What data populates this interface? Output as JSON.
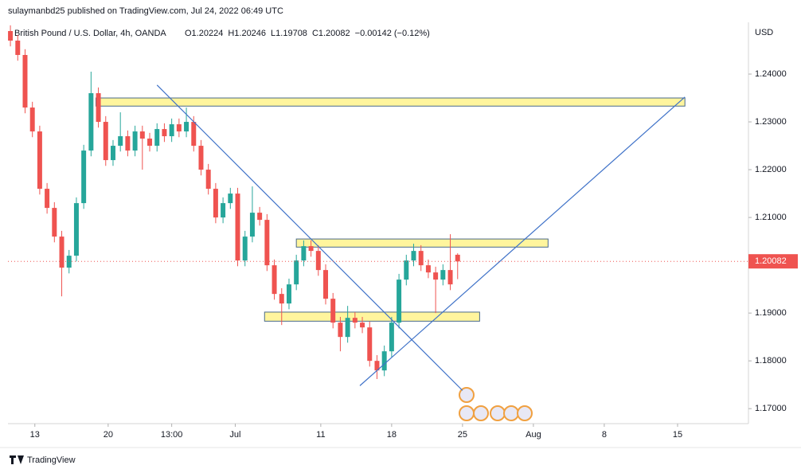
{
  "header": {
    "author": "sulaymanbd25 published on TradingView.com, Jul 24, 2022 06:49 UTC"
  },
  "footer": {
    "brand": "TradingView"
  },
  "chart_data": {
    "type": "candlestick",
    "title": "British Pound / U.S. Dollar, 4h, OANDA",
    "ohlc_text": [
      "O1.20224",
      "H1.20246",
      "L1.19708",
      "C1.20082",
      "−0.00142 (−0.12%)"
    ],
    "y_unit": "USD",
    "x": [
      0,
      3,
      6,
      9,
      12,
      15,
      18,
      21,
      24,
      27,
      30,
      33,
      36,
      39,
      42,
      45,
      48,
      51,
      54,
      57,
      60,
      63,
      66,
      69,
      72,
      75,
      78,
      81,
      84,
      87,
      90,
      93,
      96,
      99,
      102,
      105,
      108,
      111,
      114,
      117,
      120,
      123,
      126,
      129,
      132,
      135,
      138,
      141,
      144,
      147,
      150,
      153,
      156,
      159,
      162,
      165,
      168,
      171,
      174,
      177,
      180,
      183
    ],
    "open": [
      1.249,
      1.247,
      1.244,
      1.233,
      1.228,
      1.216,
      1.212,
      1.206,
      1.1995,
      1.202,
      1.213,
      1.224,
      1.236,
      1.23,
      1.222,
      1.225,
      1.227,
      1.224,
      1.228,
      1.2265,
      1.225,
      1.2285,
      1.227,
      1.2295,
      1.228,
      1.23,
      1.225,
      1.22,
      1.216,
      1.21,
      1.213,
      1.215,
      1.201,
      1.206,
      1.211,
      1.2095,
      1.2,
      1.194,
      1.192,
      1.196,
      1.201,
      1.204,
      1.203,
      1.199,
      1.193,
      1.188,
      1.185,
      1.189,
      1.188,
      1.187,
      1.18,
      1.178,
      1.182,
      1.188,
      1.197,
      1.201,
      1.203,
      1.2,
      1.1985,
      1.197,
      1.199,
      1.2022
    ],
    "high": [
      1.2502,
      1.2482,
      1.2452,
      1.2342,
      1.2292,
      1.2172,
      1.2132,
      1.2072,
      1.2032,
      1.2142,
      1.2252,
      1.2405,
      1.2372,
      1.2312,
      1.2262,
      1.232,
      1.2282,
      1.2292,
      1.2292,
      1.2277,
      1.2297,
      1.2297,
      1.2307,
      1.2307,
      1.233,
      1.2312,
      1.2262,
      1.2212,
      1.2172,
      1.2142,
      1.2162,
      1.2162,
      1.2072,
      1.2165,
      1.2122,
      1.2107,
      1.2012,
      1.1952,
      1.1972,
      1.2022,
      1.2052,
      1.2052,
      1.2042,
      1.2002,
      1.1942,
      1.1892,
      1.1915,
      1.1902,
      1.1892,
      1.1882,
      1.1812,
      1.1832,
      1.1892,
      1.1982,
      1.2022,
      1.2045,
      1.2042,
      1.2012,
      1.1997,
      1.2002,
      1.2065,
      1.2025
    ],
    "low": [
      1.2458,
      1.2428,
      1.2318,
      1.2268,
      1.2148,
      1.2108,
      1.2048,
      1.1935,
      1.1983,
      1.2008,
      1.2118,
      1.2228,
      1.2288,
      1.2208,
      1.2208,
      1.2238,
      1.2228,
      1.2228,
      1.22,
      1.2238,
      1.2238,
      1.2258,
      1.2258,
      1.2268,
      1.2268,
      1.2238,
      1.2188,
      1.2148,
      1.2088,
      1.2088,
      1.2118,
      1.1998,
      1.1998,
      1.2048,
      1.2083,
      1.1988,
      1.1928,
      1.1875,
      1.1908,
      1.1948,
      1.1998,
      1.2018,
      1.1978,
      1.1918,
      1.1868,
      1.182,
      1.1838,
      1.1868,
      1.1858,
      1.1788,
      1.1762,
      1.1768,
      1.1808,
      1.1868,
      1.1958,
      1.1998,
      1.1988,
      1.1973,
      1.19,
      1.1958,
      1.1948,
      1.1971
    ],
    "close": [
      1.247,
      1.244,
      1.233,
      1.228,
      1.216,
      1.212,
      1.206,
      1.1995,
      1.202,
      1.213,
      1.224,
      1.236,
      1.23,
      1.222,
      1.225,
      1.227,
      1.224,
      1.228,
      1.2265,
      1.225,
      1.2285,
      1.227,
      1.2295,
      1.228,
      1.23,
      1.225,
      1.22,
      1.216,
      1.21,
      1.213,
      1.215,
      1.201,
      1.206,
      1.211,
      1.2095,
      1.2,
      1.194,
      1.192,
      1.196,
      1.201,
      1.204,
      1.203,
      1.199,
      1.193,
      1.188,
      1.185,
      1.189,
      1.188,
      1.187,
      1.18,
      1.178,
      1.182,
      1.188,
      1.197,
      1.201,
      1.203,
      1.2,
      1.1985,
      1.197,
      1.199,
      1.196,
      1.2008
    ],
    "up_color": "#26a69a",
    "down_color": "#ef5350",
    "xlim": [
      -1,
      302
    ],
    "xticks": [
      {
        "value": 10,
        "label": "13"
      },
      {
        "value": 40,
        "label": "20"
      },
      {
        "value": 66,
        "label": "13:00"
      },
      {
        "value": 92,
        "label": "Jul"
      },
      {
        "value": 127,
        "label": "11"
      },
      {
        "value": 156,
        "label": "18"
      },
      {
        "value": 185,
        "label": "25"
      },
      {
        "value": 214,
        "label": "Aug"
      },
      {
        "value": 243,
        "label": "8"
      },
      {
        "value": 273,
        "label": "15"
      }
    ],
    "ylim": [
      1.1672,
      1.2505
    ],
    "yticks": [
      {
        "value": 1.17,
        "label": "1.17000"
      },
      {
        "value": 1.18,
        "label": "1.18000"
      },
      {
        "value": 1.19,
        "label": "1.19000"
      },
      {
        "value": 1.2,
        "label": "1.20000"
      },
      {
        "value": 1.21,
        "label": "1.21000"
      },
      {
        "value": 1.22,
        "label": "1.22000"
      },
      {
        "value": 1.23,
        "label": "1.23000"
      },
      {
        "value": 1.24,
        "label": "1.24000"
      }
    ],
    "last_price": 1.20082,
    "last_price_color": "#ef5350",
    "zones": [
      {
        "x": [
          35,
          276
        ],
        "y": [
          1.2333,
          1.235
        ]
      },
      {
        "x": [
          117,
          220
        ],
        "y": [
          1.2038,
          1.2055
        ]
      },
      {
        "x": [
          104,
          192
        ],
        "y": [
          1.1883,
          1.1902
        ]
      }
    ],
    "zone_color": "#fff59d",
    "trendlines": [
      {
        "x": [
          60,
          185
        ],
        "y": [
          1.2377,
          1.1738
        ]
      },
      {
        "x": [
          143,
          276
        ],
        "y": [
          1.1748,
          1.2352
        ]
      }
    ],
    "trendline_color": "#3f72c8"
  }
}
